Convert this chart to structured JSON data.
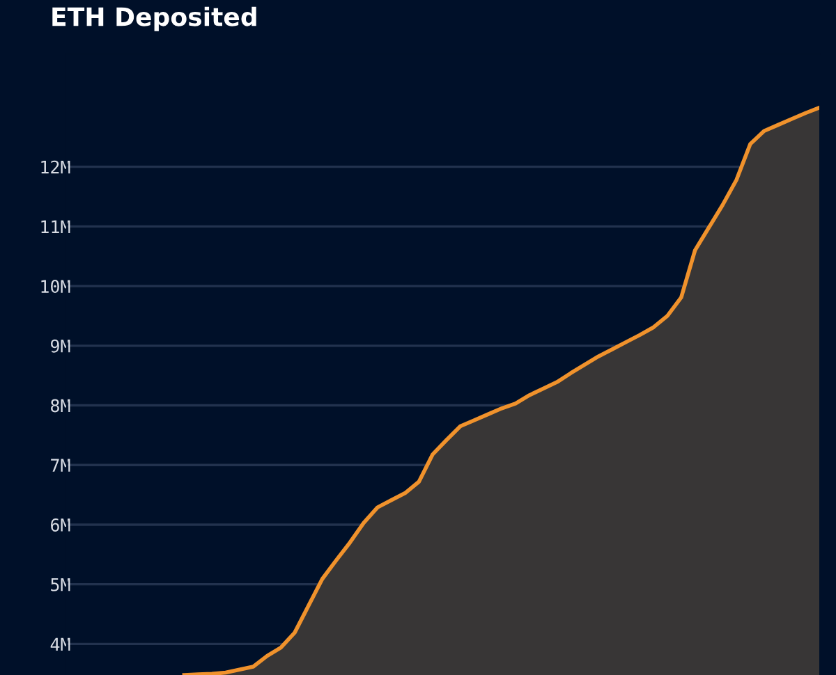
{
  "chart_data": {
    "type": "area",
    "title": "ETH Deposited",
    "categories": [
      null,
      null,
      null,
      null,
      null,
      null,
      null,
      null,
      null,
      null,
      null,
      null,
      null,
      null,
      null,
      null,
      null,
      null,
      null,
      null,
      null,
      null,
      null,
      null,
      null,
      null,
      null,
      null,
      null,
      null,
      null,
      null,
      null,
      null,
      null,
      null,
      null,
      null,
      null,
      null,
      null,
      null,
      null,
      null,
      null,
      null,
      null,
      null,
      null,
      null,
      null,
      null,
      null,
      null,
      null
    ],
    "series": [
      {
        "color": "#f0922c",
        "values": [
          null,
          null,
          null,
          null,
          null,
          null,
          null,
          null,
          3.48,
          3.49,
          3.5,
          3.52,
          3.57,
          3.62,
          3.8,
          3.94,
          4.19,
          4.64,
          5.09,
          5.4,
          5.7,
          6.03,
          6.29,
          6.41,
          6.53,
          6.72,
          7.18,
          7.42,
          7.65,
          7.75,
          7.85,
          7.95,
          8.03,
          8.17,
          8.28,
          8.39,
          8.54,
          8.68,
          8.82,
          8.94,
          9.06,
          9.18,
          9.31,
          9.5,
          9.81,
          10.6,
          10.98,
          11.36,
          11.78,
          12.38,
          12.6,
          12.7,
          12.8,
          12.9,
          12.99
        ]
      }
    ],
    "ylim": [
      3.48,
      13.89
    ],
    "yticks": [
      {
        "value": 4,
        "label": "4M"
      },
      {
        "value": 5,
        "label": "5M"
      },
      {
        "value": 6,
        "label": "6M"
      },
      {
        "value": 7,
        "label": "7M"
      },
      {
        "value": 8,
        "label": "8M"
      },
      {
        "value": 9,
        "label": "9M"
      },
      {
        "value": 10,
        "label": "10M"
      },
      {
        "value": 11,
        "label": "11M"
      },
      {
        "value": 12,
        "label": "12M"
      }
    ],
    "tick_labels": "y",
    "grid": "y",
    "legend": false
  }
}
